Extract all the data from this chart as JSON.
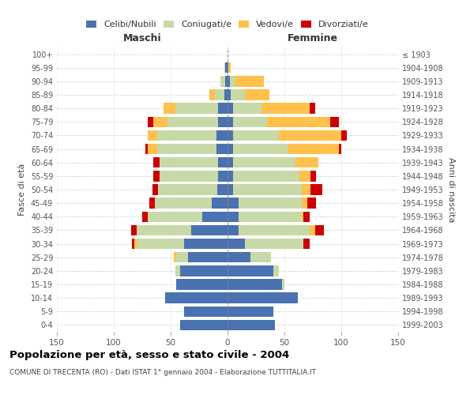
{
  "age_groups": [
    "0-4",
    "5-9",
    "10-14",
    "15-19",
    "20-24",
    "25-29",
    "30-34",
    "35-39",
    "40-44",
    "45-49",
    "50-54",
    "55-59",
    "60-64",
    "65-69",
    "70-74",
    "75-79",
    "80-84",
    "85-89",
    "90-94",
    "95-99",
    "100+"
  ],
  "birth_years": [
    "1999-2003",
    "1994-1998",
    "1989-1993",
    "1984-1988",
    "1979-1983",
    "1974-1978",
    "1969-1973",
    "1964-1968",
    "1959-1963",
    "1954-1958",
    "1949-1953",
    "1944-1948",
    "1939-1943",
    "1934-1938",
    "1929-1933",
    "1924-1928",
    "1919-1923",
    "1914-1918",
    "1909-1913",
    "1904-1908",
    "≤ 1903"
  ],
  "maschi": {
    "celibi": [
      42,
      38,
      55,
      45,
      42,
      35,
      38,
      32,
      22,
      14,
      9,
      8,
      8,
      10,
      10,
      8,
      8,
      3,
      2,
      2,
      0
    ],
    "coniugati": [
      0,
      0,
      0,
      0,
      4,
      10,
      42,
      48,
      48,
      50,
      52,
      52,
      52,
      52,
      52,
      45,
      38,
      8,
      4,
      1,
      0
    ],
    "vedovi": [
      0,
      0,
      0,
      0,
      0,
      2,
      2,
      0,
      0,
      0,
      0,
      0,
      0,
      8,
      8,
      12,
      10,
      5,
      0,
      0,
      0
    ],
    "divorziati": [
      0,
      0,
      0,
      0,
      0,
      0,
      2,
      5,
      5,
      5,
      5,
      5,
      5,
      2,
      0,
      5,
      0,
      0,
      0,
      0,
      0
    ]
  },
  "femmine": {
    "nubili": [
      42,
      40,
      62,
      48,
      40,
      20,
      15,
      10,
      10,
      10,
      5,
      5,
      5,
      5,
      5,
      5,
      5,
      3,
      2,
      1,
      0
    ],
    "coniugate": [
      0,
      0,
      0,
      2,
      5,
      18,
      52,
      62,
      55,
      55,
      60,
      58,
      55,
      48,
      40,
      30,
      25,
      12,
      5,
      0,
      0
    ],
    "vedove": [
      0,
      0,
      0,
      0,
      0,
      0,
      0,
      5,
      2,
      5,
      8,
      10,
      20,
      45,
      55,
      55,
      42,
      22,
      25,
      2,
      0
    ],
    "divorziate": [
      0,
      0,
      0,
      0,
      0,
      0,
      5,
      8,
      5,
      8,
      10,
      5,
      0,
      2,
      5,
      8,
      5,
      0,
      0,
      0,
      0
    ]
  },
  "colors": {
    "celibi_nubili": "#4a72b0",
    "coniugati": "#c8d9a8",
    "vedovi": "#ffc04c",
    "divorziati": "#cc0000"
  },
  "xlim": 150,
  "title": "Popolazione per età, sesso e stato civile - 2004",
  "subtitle": "COMUNE DI TRECENTA (RO) - Dati ISTAT 1° gennaio 2004 - Elaborazione TUTTITALIA.IT",
  "ylabel_left": "Fasce di età",
  "ylabel_right": "Anni di nascita",
  "xlabel_left": "Maschi",
  "xlabel_right": "Femmine"
}
